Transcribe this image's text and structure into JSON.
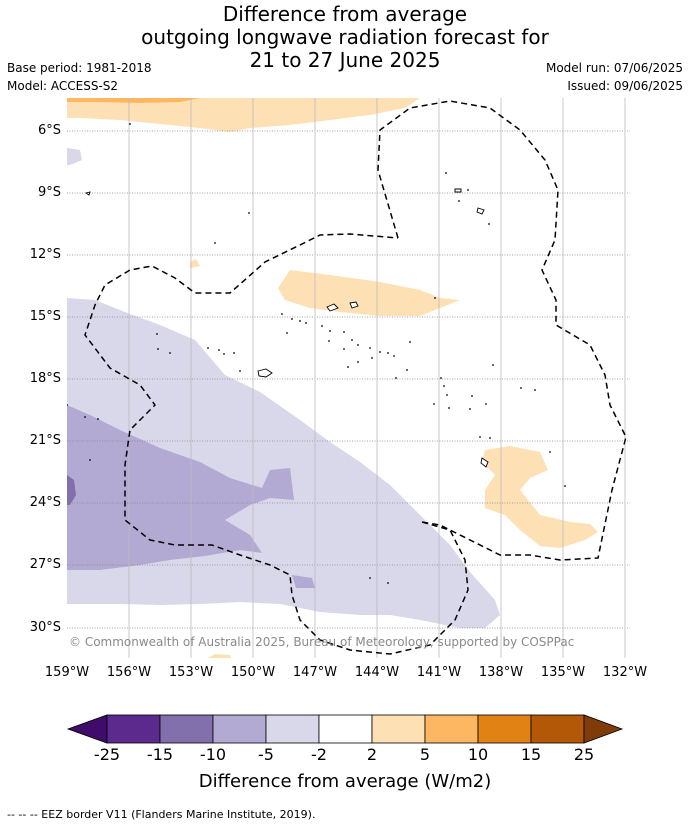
{
  "title": {
    "line1": "Difference from average",
    "line2": "outgoing longwave radiation forecast for",
    "line3": "21 to 27 June 2025"
  },
  "meta": {
    "base_period": "Base period: 1981-2018",
    "model": "Model: ACCESS-S2",
    "model_run": "Model run: 07/06/2025",
    "issued": "Issued: 09/06/2025"
  },
  "map": {
    "lat_ticks": [
      "6°S",
      "9°S",
      "12°S",
      "15°S",
      "18°S",
      "21°S",
      "24°S",
      "27°S",
      "30°S"
    ],
    "lon_ticks": [
      "159°W",
      "156°W",
      "153°W",
      "150°W",
      "147°W",
      "144°W",
      "141°W",
      "138°W",
      "135°W",
      "132°W"
    ],
    "copyright": "© Commonwealth of Australia 2025, Bureau of Meteorology, supported by COSPPac"
  },
  "colorbar": {
    "tick_labels": [
      "-25",
      "-15",
      "-10",
      "-5",
      "-2",
      "2",
      "5",
      "10",
      "15",
      "25"
    ],
    "label": "Difference from average (W/m2)",
    "colors": [
      "#3f0c6b",
      "#5b2a8c",
      "#8170ab",
      "#b2aad2",
      "#d8d8ea",
      "#ffffff",
      "#fde0b4",
      "#fdb661",
      "#e08214",
      "#b35806",
      "#7f3b08"
    ]
  },
  "footer": "-- -- -- EEZ border V11 (Flanders Marine Institute, 2019)."
}
